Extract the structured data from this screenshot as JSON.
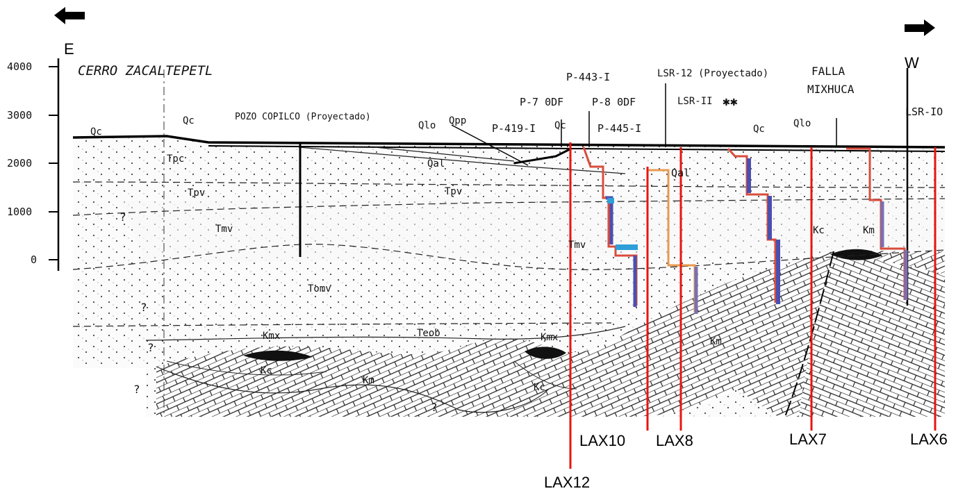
{
  "directions": {
    "east": "E",
    "west": "W"
  },
  "axis": {
    "ticks": [
      "4000",
      "3000",
      "2000",
      "1000",
      "0"
    ]
  },
  "title": "CERRO ZACALTEPETL",
  "wells": {
    "pozo_copilco": "POZO COPILCO (Proyectado)",
    "p419": "P-419-I",
    "p700": "P-7 0DF",
    "p443": "P-443-I",
    "p800": "P-8 0DF",
    "p445": "P-445-I",
    "lsr12": "LSR-12 (Proyectado)",
    "lsr11": "LSR-II",
    "lsr10": "LSR-IO",
    "falla_1": "FALLA",
    "falla_2": "MIXHUCA"
  },
  "units": {
    "qc1": "Qc",
    "qc2": "Qc",
    "qc3": "Qc",
    "qc4": "Qc",
    "qlo1": "Qlo",
    "qlo2": "Qlo",
    "qpp": "Qpp",
    "qal1": "Qal",
    "qal2": "Qal",
    "tpc": "Tpc",
    "tpv1": "Tpv",
    "tpv2": "Tpv",
    "tmv1": "Tmv",
    "tmv2": "Tmv",
    "tomv": "Tomv",
    "teob": "Teob",
    "kmx1": "Kmx",
    "kmx2": "Kmx",
    "kc1": "Kc",
    "kc2": "Kc",
    "kc3": "Kc",
    "km1": "Km",
    "km2": "Km",
    "km3": "Km",
    "q1": "?",
    "q2": "?",
    "q3": "?",
    "q4": "?",
    "q5": "?"
  },
  "lax_labels": {
    "lax12": "LAX12",
    "lax10": "LAX10",
    "lax8": "LAX8",
    "lax7": "LAX7",
    "lax6": "LAX6"
  },
  "colors": {
    "lax_line": "#e8150f",
    "profile_red": "#d94c3c",
    "profile_orange": "#e89a52",
    "profile_blue": "#4b4fb0",
    "profile_cyan": "#2f9fd8"
  }
}
